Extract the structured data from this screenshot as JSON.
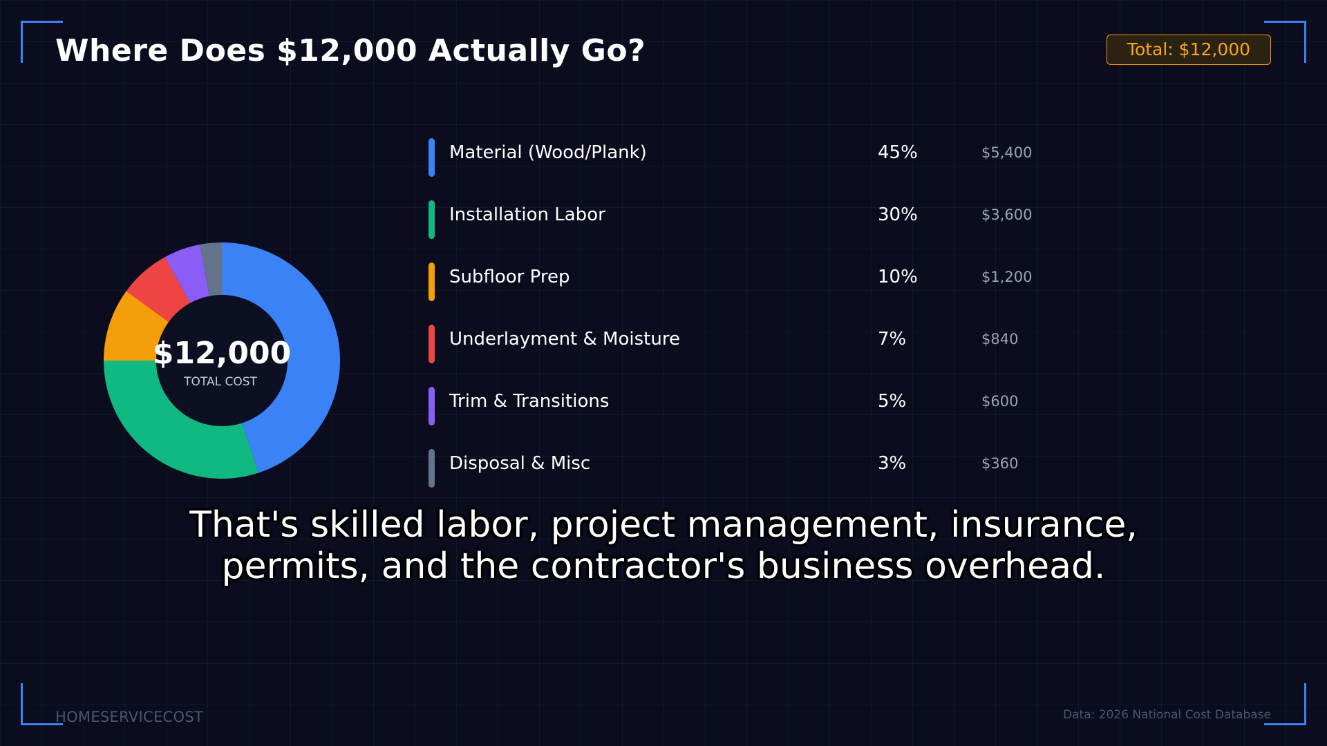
{
  "header": {
    "title": "Where Does $12,000 Actually Go?",
    "total_badge": "Total: $12,000"
  },
  "donut": {
    "center_value": "$12,000",
    "center_label": "TOTAL COST"
  },
  "chart_data": {
    "type": "pie",
    "variant": "donut",
    "total": 12000,
    "categories": [
      "Material (Wood/Plank)",
      "Installation Labor",
      "Subfloor Prep",
      "Underlayment & Moisture",
      "Trim & Transitions",
      "Disposal & Misc"
    ],
    "values": [
      5400,
      3600,
      1200,
      840,
      600,
      360
    ],
    "percentages": [
      45,
      30,
      10,
      7,
      5,
      3
    ],
    "colors": [
      "#3b82f6",
      "#10b981",
      "#f59e0b",
      "#ef4444",
      "#8b5cf6",
      "#64748b"
    ],
    "legend_position": "right"
  },
  "legend": {
    "items": [
      {
        "label": "Material (Wood/Plank)",
        "pct": "45%",
        "amount": "$5,400",
        "color": "#3b82f6"
      },
      {
        "label": "Installation Labor",
        "pct": "30%",
        "amount": "$3,600",
        "color": "#10b981"
      },
      {
        "label": "Subfloor Prep",
        "pct": "10%",
        "amount": "$1,200",
        "color": "#f59e0b"
      },
      {
        "label": "Underlayment & Moisture",
        "pct": "7%",
        "amount": "$840",
        "color": "#ef4444"
      },
      {
        "label": "Trim & Transitions",
        "pct": "5%",
        "amount": "$600",
        "color": "#8b5cf6"
      },
      {
        "label": "Disposal & Misc",
        "pct": "3%",
        "amount": "$360",
        "color": "#64748b"
      }
    ]
  },
  "caption": {
    "line1": "That's skilled labor, project management, insurance,",
    "line2": "permits, and the contractor's business overhead."
  },
  "footer": {
    "brand": "HOMESERVICECOST",
    "source": "Data: 2026 National Cost Database"
  },
  "colors": {
    "background": "#0b0d1e",
    "accent": "#3b82f6",
    "badge": "#f5a623"
  }
}
